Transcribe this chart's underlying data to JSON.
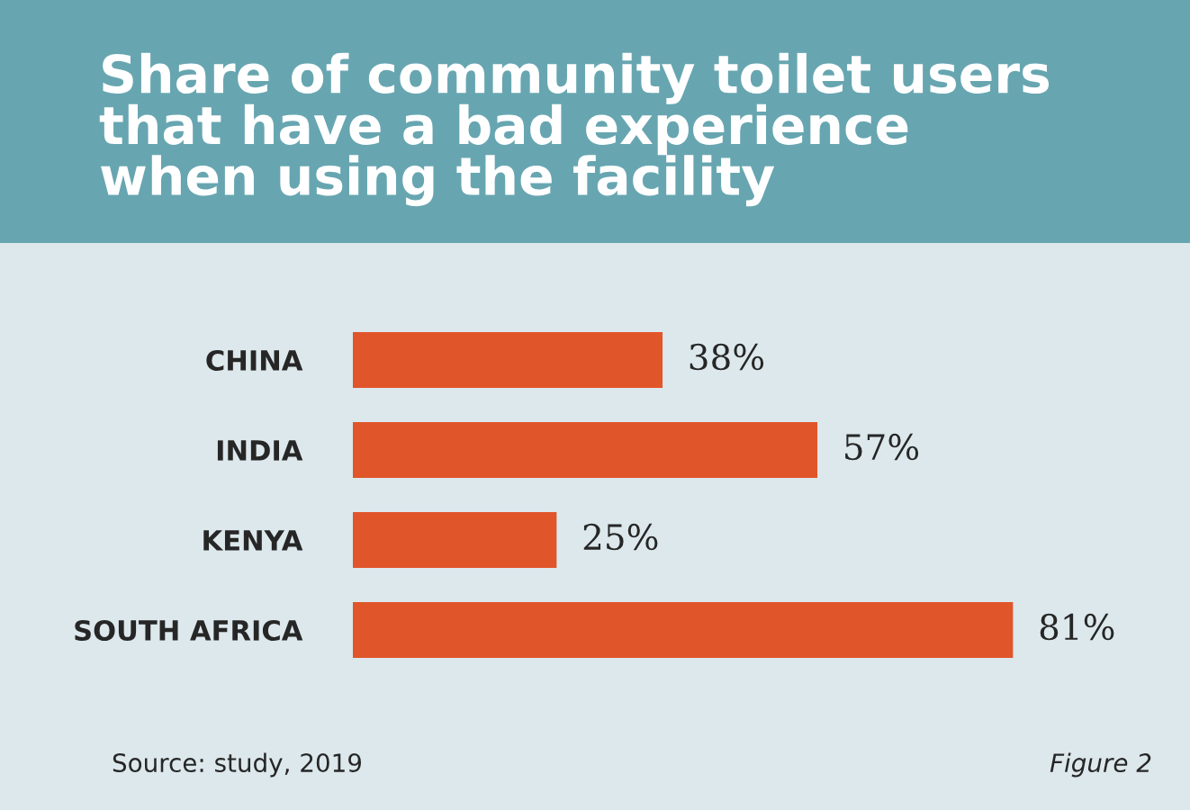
{
  "chart_data": {
    "type": "bar",
    "orientation": "horizontal",
    "title": "Share of community toilet users\nthat have a bad experience\nwhen using the facility",
    "categories": [
      "CHINA",
      "INDIA",
      "KENYA",
      "SOUTH AFRICA"
    ],
    "values": [
      38,
      57,
      25,
      81
    ],
    "value_labels": [
      "38%",
      "57%",
      "25%",
      "81%"
    ],
    "color": "#e0552a",
    "tick_labels": "y",
    "grid": false,
    "legend": false,
    "annotations": [
      "Source: study, 2019",
      "Figure 2"
    ]
  }
}
